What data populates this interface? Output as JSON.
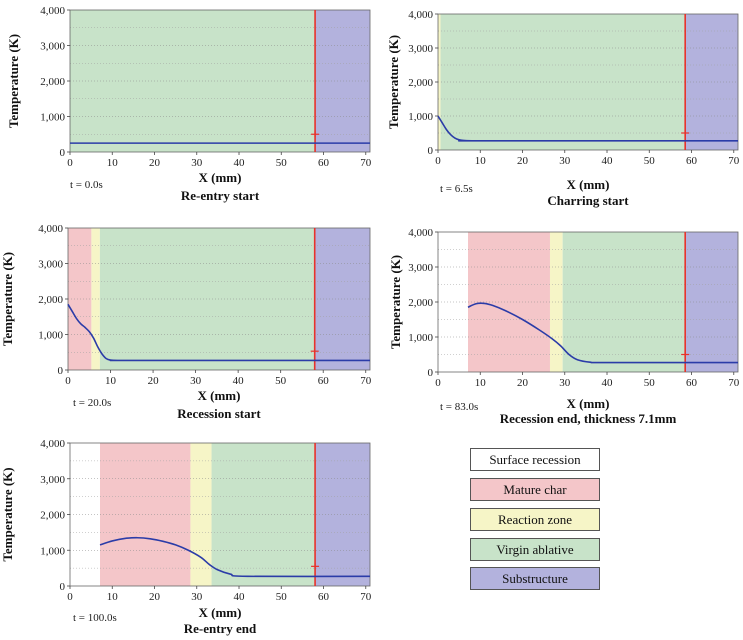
{
  "colors": {
    "surface_recession": "#ffffff",
    "mature_char": "#f4c6c9",
    "reaction_zone": "#f6f5c7",
    "virgin_ablative": "#c8e3c9",
    "substructure": "#b3b2dd",
    "curve": "#2b3ca8",
    "marker": "#e8322b"
  },
  "legend": [
    {
      "label": "Surface recession",
      "color": "#ffffff"
    },
    {
      "label": "Mature char",
      "color": "#f4c6c9"
    },
    {
      "label": "Reaction zone",
      "color": "#f6f5c7"
    },
    {
      "label": "Virgin ablative",
      "color": "#c8e3c9"
    },
    {
      "label": "Substructure",
      "color": "#b3b2dd"
    }
  ],
  "chart_data": [
    {
      "type": "line",
      "title": "Re-entry start",
      "time": "t = 0.0s",
      "xlabel": "X (mm)",
      "ylabel": "Temperature (K)",
      "xlim": [
        0,
        71
      ],
      "ylim": [
        0,
        4000
      ],
      "xticks": [
        0,
        10,
        20,
        30,
        40,
        50,
        60,
        70
      ],
      "yticks": [
        0,
        1000,
        2000,
        3000,
        4000
      ],
      "ytick_labels": [
        "0",
        "1,000",
        "2,000",
        "3,000",
        "4,000"
      ],
      "zones": [
        {
          "name": "virgin_ablative",
          "from": 0,
          "to": 58
        },
        {
          "name": "substructure",
          "from": 58,
          "to": 71
        }
      ],
      "interface_x": 58,
      "marker": {
        "x": 58,
        "y": 500
      },
      "x": [
        0,
        71
      ],
      "y": [
        250,
        250
      ]
    },
    {
      "type": "line",
      "title": "Charring start",
      "time": "t = 6.5s",
      "xlabel": "X (mm)",
      "ylabel": "Temperature (K)",
      "xlim": [
        0,
        71
      ],
      "ylim": [
        0,
        4000
      ],
      "xticks": [
        0,
        10,
        20,
        30,
        40,
        50,
        60,
        70
      ],
      "yticks": [
        0,
        1000,
        2000,
        3000,
        4000
      ],
      "ytick_labels": [
        "0",
        "1,000",
        "2,000",
        "3,000",
        "4,000"
      ],
      "zones": [
        {
          "name": "reaction_zone",
          "from": 0,
          "to": 0.6
        },
        {
          "name": "virgin_ablative",
          "from": 0.6,
          "to": 58.5
        },
        {
          "name": "substructure",
          "from": 58.5,
          "to": 71
        }
      ],
      "interface_x": 58.5,
      "marker": {
        "x": 58.5,
        "y": 500
      },
      "x": [
        0,
        1,
        2,
        3,
        4,
        5,
        6,
        8,
        10,
        71
      ],
      "y": [
        1000,
        800,
        600,
        450,
        350,
        300,
        280,
        270,
        270,
        270
      ]
    },
    {
      "type": "line",
      "title": "Recession start",
      "time": "t = 20.0s",
      "xlabel": "X (mm)",
      "ylabel": "Temperature (K)",
      "xlim": [
        0,
        71
      ],
      "ylim": [
        0,
        4000
      ],
      "xticks": [
        0,
        10,
        20,
        30,
        40,
        50,
        60,
        70
      ],
      "yticks": [
        0,
        1000,
        2000,
        3000,
        4000
      ],
      "ytick_labels": [
        "0",
        "1,000",
        "2,000",
        "3,000",
        "4,000"
      ],
      "zones": [
        {
          "name": "mature_char",
          "from": 0,
          "to": 5.5
        },
        {
          "name": "reaction_zone",
          "from": 5.5,
          "to": 7.5
        },
        {
          "name": "virgin_ablative",
          "from": 7.5,
          "to": 58
        },
        {
          "name": "substructure",
          "from": 58,
          "to": 71
        }
      ],
      "interface_x": 58,
      "marker": {
        "x": 58,
        "y": 530
      },
      "x": [
        0,
        1,
        2,
        3,
        4,
        5,
        6,
        7,
        8,
        9,
        10,
        12,
        15,
        71
      ],
      "y": [
        1850,
        1650,
        1450,
        1300,
        1200,
        1080,
        900,
        650,
        450,
        320,
        280,
        270,
        270,
        270
      ]
    },
    {
      "type": "line",
      "title": "Recession end, thickness 7.1mm",
      "time": "t = 83.0s",
      "xlabel": "X (mm)",
      "ylabel": "Temperature (K)",
      "xlim": [
        0,
        71
      ],
      "ylim": [
        0,
        4000
      ],
      "xticks": [
        0,
        10,
        20,
        30,
        40,
        50,
        60,
        70
      ],
      "yticks": [
        0,
        1000,
        2000,
        3000,
        4000
      ],
      "ytick_labels": [
        "0",
        "1,000",
        "2,000",
        "3,000",
        "4,000"
      ],
      "zones": [
        {
          "name": "surface_recession",
          "from": 0,
          "to": 7.1
        },
        {
          "name": "mature_char",
          "from": 7.1,
          "to": 26.5
        },
        {
          "name": "reaction_zone",
          "from": 26.5,
          "to": 29.5
        },
        {
          "name": "virgin_ablative",
          "from": 29.5,
          "to": 58.5
        },
        {
          "name": "substructure",
          "from": 58.5,
          "to": 71
        }
      ],
      "interface_x": 58.5,
      "marker": {
        "x": 58.5,
        "y": 500
      },
      "x": [
        7.1,
        9,
        11,
        13,
        16,
        20,
        24,
        27,
        29,
        31,
        33,
        36,
        40,
        71
      ],
      "y": [
        1850,
        1950,
        1960,
        1900,
        1750,
        1500,
        1200,
        950,
        750,
        500,
        350,
        280,
        270,
        270
      ]
    },
    {
      "type": "line",
      "title": "Re-entry end",
      "time": "t = 100.0s",
      "xlabel": "X (mm)",
      "ylabel": "Temperature (K)",
      "xlim": [
        0,
        71
      ],
      "ylim": [
        0,
        4000
      ],
      "xticks": [
        0,
        10,
        20,
        30,
        40,
        50,
        60,
        70
      ],
      "yticks": [
        0,
        1000,
        2000,
        3000,
        4000
      ],
      "ytick_labels": [
        "0",
        "1,000",
        "2,000",
        "3,000",
        "4,000"
      ],
      "zones": [
        {
          "name": "surface_recession",
          "from": 0,
          "to": 7.1
        },
        {
          "name": "mature_char",
          "from": 7.1,
          "to": 28.5
        },
        {
          "name": "reaction_zone",
          "from": 28.5,
          "to": 33.5
        },
        {
          "name": "virgin_ablative",
          "from": 33.5,
          "to": 58
        },
        {
          "name": "substructure",
          "from": 58,
          "to": 71
        }
      ],
      "interface_x": 58,
      "marker": {
        "x": 58,
        "y": 550
      },
      "x": [
        7.1,
        10,
        13,
        16,
        19,
        22,
        25,
        28,
        31,
        33,
        35,
        38,
        42,
        71
      ],
      "y": [
        1150,
        1260,
        1330,
        1350,
        1320,
        1250,
        1150,
        1000,
        800,
        600,
        450,
        330,
        270,
        270
      ]
    }
  ]
}
